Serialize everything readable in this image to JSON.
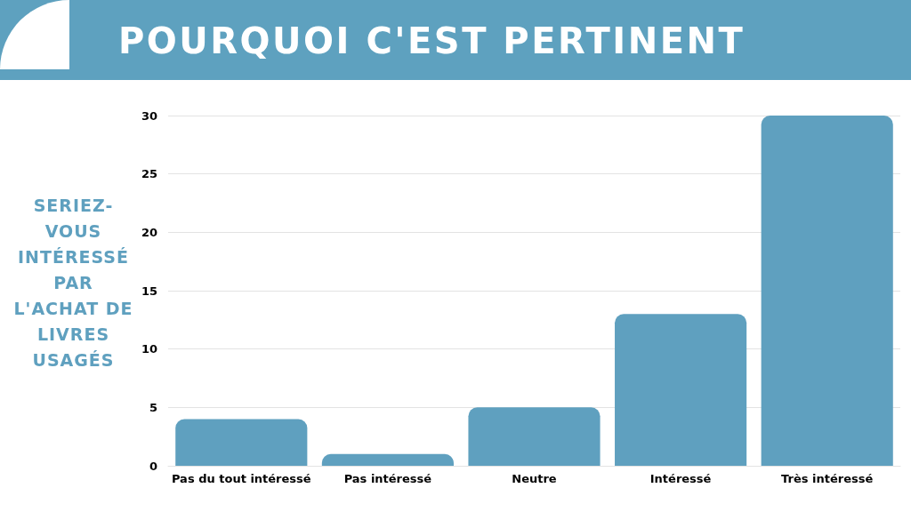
{
  "chart_data": {
    "type": "bar",
    "title": "POURQUOI C'EST PERTINENT",
    "ylabel": "SERIEZ-VOUS INTÉRESSÉ PAR L'ACHAT DE LIVRES USAGÉS",
    "categories": [
      "Pas du tout intéressé",
      "Pas intéressé",
      "Neutre",
      "Intéressé",
      "Très intéressé"
    ],
    "values": [
      4,
      1,
      5,
      13,
      30
    ],
    "color": "#5fa0bf",
    "ylim": [
      0,
      30
    ],
    "yticks": [
      0,
      5,
      10,
      15,
      20,
      25,
      30
    ],
    "grid": "y"
  }
}
